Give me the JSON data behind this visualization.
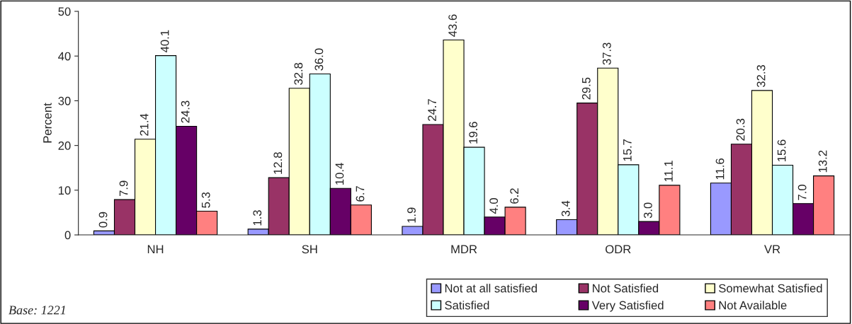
{
  "chart_data": {
    "type": "bar",
    "ylabel": "Percent",
    "categories": [
      "NH",
      "SH",
      "MDR",
      "ODR",
      "VR"
    ],
    "series": [
      {
        "name": "Not at all satisfied",
        "color": "#9999ff",
        "values": [
          0.9,
          1.3,
          1.9,
          3.4,
          11.6
        ],
        "value_labels": [
          "0.9",
          "1.3",
          "1.9",
          "3.4",
          "11.6"
        ]
      },
      {
        "name": "Not Satisfied",
        "color": "#993366",
        "values": [
          7.9,
          12.8,
          24.7,
          29.5,
          20.3
        ],
        "value_labels": [
          "7.9",
          "12.8",
          "24.7",
          "29.5",
          "20.3"
        ]
      },
      {
        "name": "Somewhat Satisfied",
        "color": "#ffffcc",
        "values": [
          21.4,
          32.8,
          43.6,
          37.3,
          32.3
        ],
        "value_labels": [
          "21.4",
          "32.8",
          "43.6",
          "37.3",
          "32.3"
        ]
      },
      {
        "name": "Satisfied",
        "color": "#ccffff",
        "values": [
          40.1,
          36.0,
          19.6,
          15.7,
          15.6
        ],
        "value_labels": [
          "40.1",
          "36.0",
          "19.6",
          "15.7",
          "15.6"
        ]
      },
      {
        "name": "Very Satisfied",
        "color": "#660066",
        "values": [
          24.3,
          10.4,
          4.0,
          3.0,
          7.0
        ],
        "value_labels": [
          "24.3",
          "10.4",
          "4.0",
          "3.0",
          "7.0"
        ]
      },
      {
        "name": "Not Available",
        "color": "#ff8080",
        "values": [
          5.3,
          6.7,
          6.2,
          11.1,
          13.2
        ],
        "value_labels": [
          "5.3",
          "6.7",
          "6.2",
          "11.1",
          "13.2"
        ]
      }
    ],
    "ylim": [
      0,
      50
    ],
    "yticks": [
      0,
      10,
      20,
      30,
      40,
      50
    ],
    "grid": false,
    "legend": "bottom right",
    "annotations": [
      "Base: 1221"
    ]
  }
}
